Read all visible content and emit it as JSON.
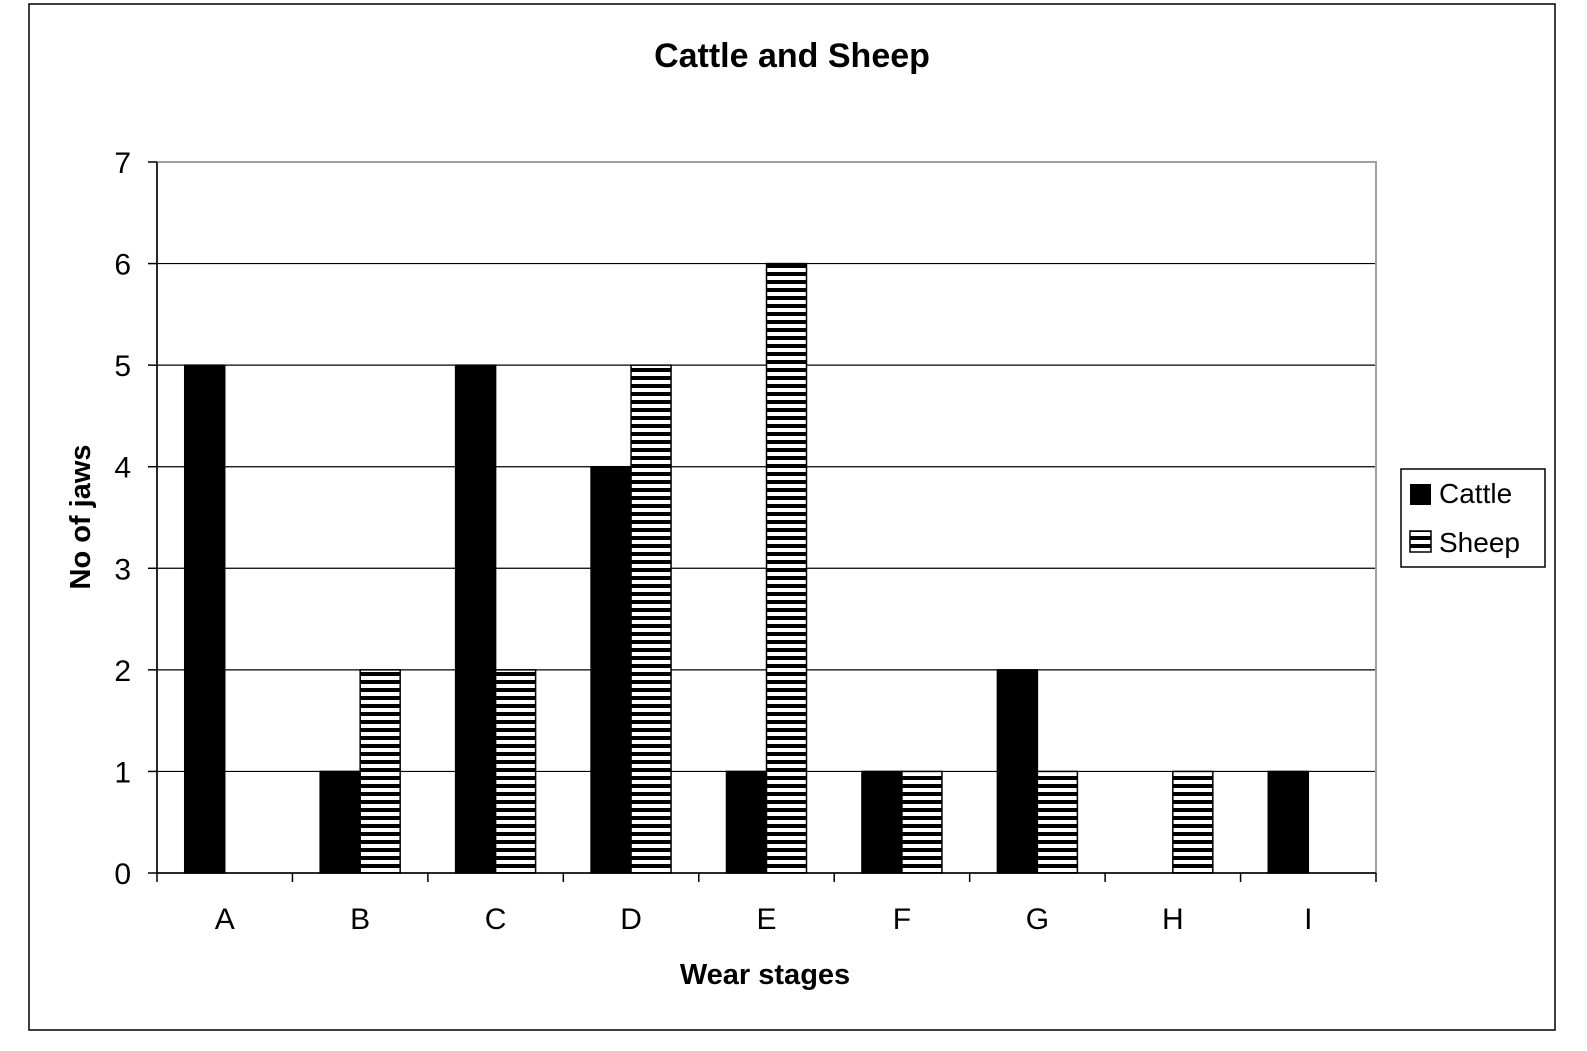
{
  "chart_data": {
    "type": "bar",
    "title": "Cattle and Sheep",
    "xlabel": "Wear stages",
    "ylabel": "No of jaws",
    "categories": [
      "A",
      "B",
      "C",
      "D",
      "E",
      "F",
      "G",
      "H",
      "I"
    ],
    "series": [
      {
        "name": "Cattle",
        "fill": "solid",
        "color": "#000000",
        "values": [
          5,
          1,
          5,
          4,
          1,
          1,
          2,
          0,
          1
        ]
      },
      {
        "name": "Sheep",
        "fill": "horizontal-stripes",
        "color": "#000000",
        "values": [
          0,
          2,
          2,
          5,
          6,
          1,
          1,
          1,
          0
        ]
      }
    ],
    "ylim": [
      0,
      7
    ],
    "yticks": [
      0,
      1,
      2,
      3,
      4,
      5,
      6,
      7
    ],
    "grid": true,
    "legend_position": "right"
  }
}
